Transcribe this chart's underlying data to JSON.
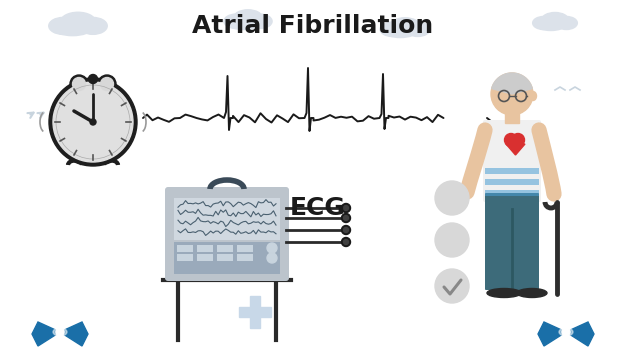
{
  "title": "Atrial Fibrillation",
  "title_fontsize": 18,
  "title_fontweight": "bold",
  "bg_color": "#ffffff",
  "ecg_label": "ECG",
  "clock_color": "#2d2d2d",
  "clock_face_color": "#e0e0e0",
  "skin_color": "#e8c4a0",
  "shirt_color": "#f0f0f0",
  "shirt_stripe": "#4a9fd4",
  "pants_color": "#3d6b7a",
  "shoe_color": "#2a2a2a",
  "hair_color": "#d0d0d0",
  "heart_color": "#d93030",
  "blue_accent": "#1a6fa8",
  "dark_line": "#1a1a1a",
  "device_color": "#bcc4cc",
  "device_dark": "#6a7a8a",
  "cloud_color": "#dce2ea",
  "check_color": "#aaaaaa",
  "cross_color": "#c8d8e8",
  "ecg_waveform_color": "#1a1a1a"
}
